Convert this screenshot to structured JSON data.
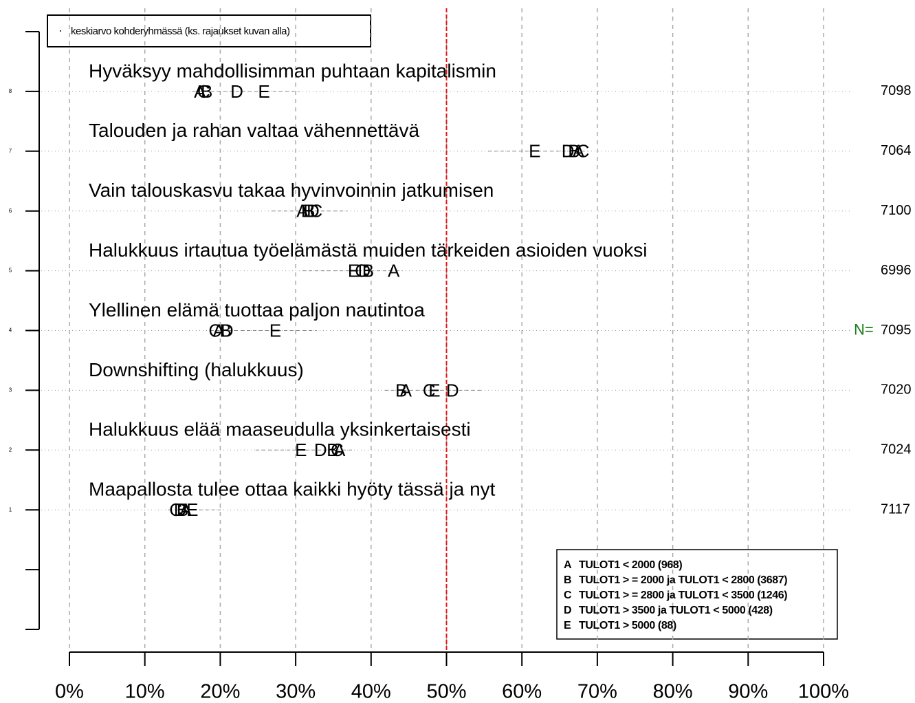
{
  "chart_data": {
    "type": "dotplot",
    "categories": [
      "Maapallosta tulee ottaa kaikki hyöty tässä ja nyt",
      "Halukkuus elää maaseudulla yksinkertaisesti",
      "Downshifting (halukkuus)",
      "Ylellinen elämä tuottaa paljon nautintoa",
      "Halukkuus irtautua työelämästä muiden tärkeiden asioiden vuoksi",
      "Vain talouskasvu takaa hyvinvoinnin jatkumisen",
      "Talouden ja rahan valtaa vähennettävä",
      "Hyväksyy mahdollisimman puhtaan kapitalismin"
    ],
    "series": [
      {
        "name": "A",
        "description": "TULOT1 < 2000 (968)",
        "color": "#000000",
        "values": [
          15.4,
          35.8,
          44.6,
          19.8,
          43.0,
          30.9,
          67.5,
          17.3
        ]
      },
      {
        "name": "B",
        "description": "TULOT1 > = 2000 ja TULOT1 < 2800 (3687)",
        "color": "#000000",
        "values": [
          15.0,
          34.9,
          44.0,
          20.7,
          39.6,
          31.8,
          66.9,
          18.2
        ]
      },
      {
        "name": "C",
        "description": "TULOT1 > = 2800 ja TULOT1 < 3500 (1246)",
        "color": "#000000",
        "values": [
          14.1,
          35.5,
          47.7,
          19.3,
          38.7,
          32.7,
          68.1,
          17.8
        ]
      },
      {
        "name": "D",
        "description": "TULOT1 > 3500 ja TULOT1 < 5000 (428)",
        "color": "#000000",
        "values": [
          14.7,
          33.3,
          50.8,
          20.9,
          39.1,
          32.3,
          66.1,
          22.2
        ]
      },
      {
        "name": "E",
        "description": "TULOT1 > 5000 (88)",
        "color": "#000000",
        "values": [
          16.3,
          30.7,
          48.4,
          27.3,
          37.7,
          31.5,
          61.7,
          25.8
        ]
      }
    ],
    "ranges": [
      [
        13.1,
        20.0
      ],
      [
        24.7,
        37.7
      ],
      [
        41.8,
        54.6
      ],
      [
        18.6,
        32.7
      ],
      [
        30.9,
        44.1
      ],
      [
        26.8,
        36.8
      ],
      [
        55.5,
        68.7
      ],
      [
        16.3,
        30.4
      ]
    ],
    "n_label": "N=",
    "n_values": [
      7117,
      7024,
      7020,
      7095,
      6996,
      7100,
      7064,
      7098
    ],
    "legend_title": "keskiarvo kohderyhmässä (ks. rajaukset kuvan alla)",
    "reference_line": 50,
    "reference_color": "#e41a1c",
    "xlim": [
      0,
      100
    ],
    "xticks": [
      {
        "value": 0,
        "label": "0%"
      },
      {
        "value": 10,
        "label": "10%"
      },
      {
        "value": 20,
        "label": "20%"
      },
      {
        "value": 30,
        "label": "30%"
      },
      {
        "value": 40,
        "label": "40%"
      },
      {
        "value": 50,
        "label": "50%"
      },
      {
        "value": 60,
        "label": "60%"
      },
      {
        "value": 70,
        "label": "70%"
      },
      {
        "value": 80,
        "label": "80%"
      },
      {
        "value": 90,
        "label": "90%"
      },
      {
        "value": 100,
        "label": "100%"
      }
    ],
    "ylim": [
      -1,
      9
    ],
    "yticks": [
      1,
      2,
      3,
      4,
      5,
      6,
      7,
      8
    ],
    "yminor_ticks": [
      -1,
      0,
      9
    ],
    "grid": true
  }
}
